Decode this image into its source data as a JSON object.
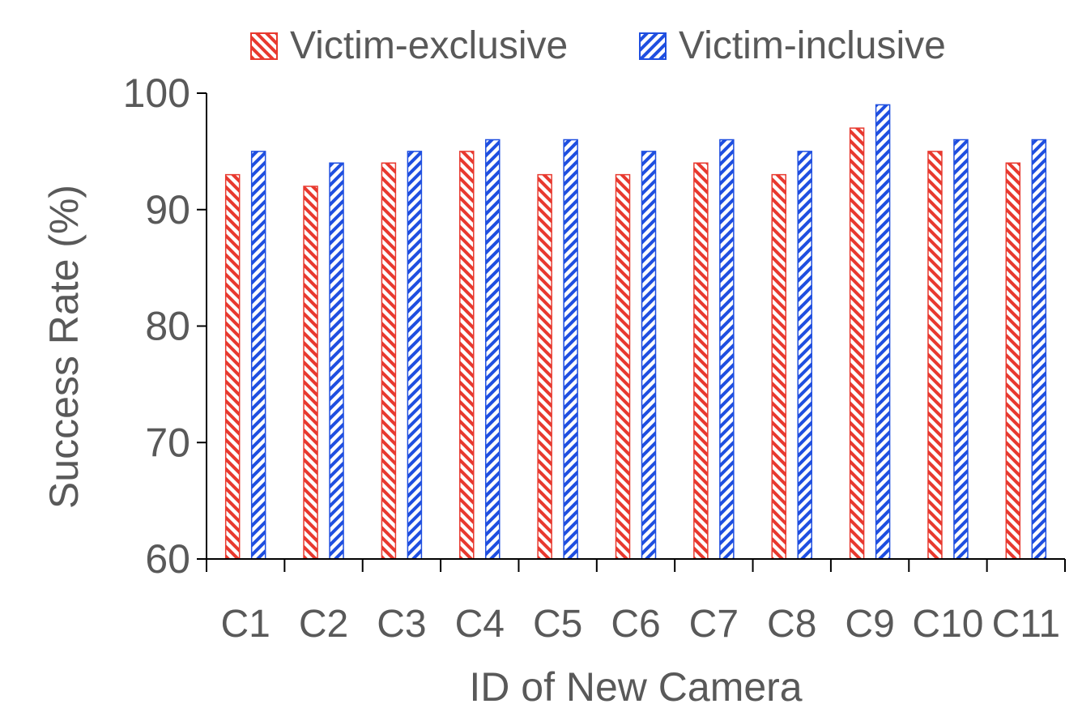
{
  "chart_data": {
    "type": "bar",
    "title": "",
    "xlabel": "ID of New Camera",
    "ylabel": "Success Rate (%)",
    "ylim": [
      60,
      100
    ],
    "yticks": [
      "60",
      "70",
      "80",
      "90",
      "100"
    ],
    "categories": [
      "C1",
      "C2",
      "C3",
      "C4",
      "C5",
      "C6",
      "C7",
      "C8",
      "C9",
      "C10",
      "C11"
    ],
    "legend_position": "top-center",
    "grid": false,
    "series": [
      {
        "name": "Victim-exclusive",
        "color": "#e8392f",
        "pattern": "diagonal-stripes-down",
        "values": [
          93,
          92,
          94,
          95,
          93,
          93,
          94,
          93,
          97,
          95,
          94
        ]
      },
      {
        "name": "Victim-inclusive",
        "color": "#1f4fe0",
        "pattern": "diagonal-stripes-up",
        "values": [
          95,
          94,
          95,
          96,
          96,
          95,
          96,
          95,
          99,
          96,
          96
        ]
      }
    ]
  }
}
